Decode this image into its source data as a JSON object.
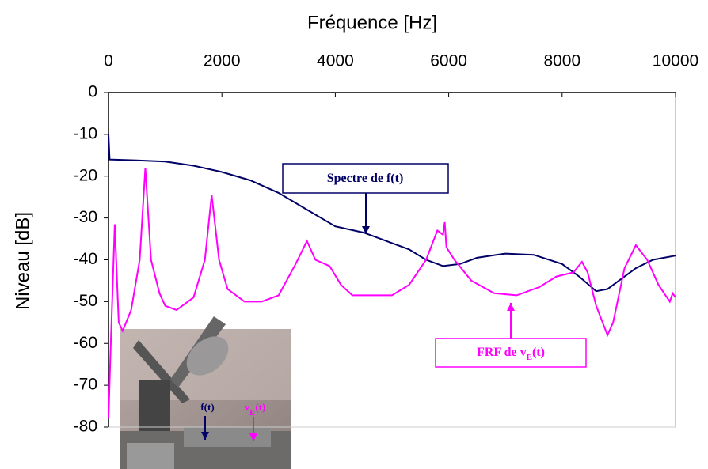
{
  "chart_data": {
    "type": "line",
    "title": "Fréquence [Hz]",
    "y_label": "Niveau [dB]",
    "xlim": [
      0,
      10000
    ],
    "xticks": [
      0,
      2000,
      4000,
      6000,
      8000,
      10000
    ],
    "ylim": [
      -80,
      0
    ],
    "yticks": [
      0,
      -10,
      -20,
      -30,
      -40,
      -50,
      -60,
      -70,
      -80
    ],
    "series": [
      {
        "color": "#000066",
        "x": [
          0,
          20,
          500,
          1000,
          1500,
          2000,
          2500,
          3000,
          3500,
          4000,
          4500,
          4800,
          5000,
          5300,
          5600,
          5900,
          6200,
          6500,
          7000,
          7500,
          8000,
          8300,
          8600,
          8800,
          9000,
          9300,
          9600,
          10000
        ],
        "values": [
          -10,
          -16,
          -16.2,
          -16.5,
          -17.5,
          -19,
          -21,
          -24,
          -28,
          -32,
          -33.5,
          -35,
          -36,
          -37.5,
          -40,
          -41.5,
          -41,
          -39.5,
          -38.5,
          -38.8,
          -41,
          -44,
          -47.5,
          -47,
          -45,
          -42,
          -40,
          -39
        ]
      },
      {
        "color": "#ff00ff",
        "x": [
          0,
          40,
          110,
          180,
          250,
          400,
          550,
          650,
          750,
          900,
          1000,
          1200,
          1500,
          1700,
          1820,
          1950,
          2100,
          2400,
          2700,
          3000,
          3300,
          3500,
          3650,
          3900,
          4100,
          4300,
          4600,
          5000,
          5300,
          5600,
          5800,
          5900,
          5930,
          5960,
          6100,
          6400,
          6800,
          7200,
          7600,
          7900,
          8200,
          8350,
          8450,
          8600,
          8800,
          8900,
          9100,
          9300,
          9500,
          9700,
          9900,
          9950,
          10000
        ],
        "values": [
          -78,
          -60,
          -31.5,
          -55,
          -57,
          -52,
          -40,
          -18,
          -40,
          -48,
          -51,
          -52,
          -49,
          -40,
          -24.5,
          -40,
          -47,
          -50,
          -50,
          -48.5,
          -41,
          -35.5,
          -40,
          -41.5,
          -46,
          -48.5,
          -48.5,
          -48.5,
          -46,
          -40,
          -33,
          -34,
          -31,
          -37,
          -40,
          -45,
          -48,
          -48.5,
          -46.5,
          -44,
          -43,
          -40.5,
          -43,
          -51,
          -58,
          -55,
          -42,
          -36.5,
          -40,
          -46,
          -50,
          -48,
          -49
        ]
      }
    ],
    "annotations": [
      {
        "text": [
          "Spectre de f(t)"
        ]
      },
      {
        "text": [
          "FRF de v",
          "E",
          "(t)"
        ]
      }
    ],
    "inset_labels": [
      {
        "text": [
          "f(t)"
        ]
      },
      {
        "text": [
          "v",
          "E",
          "(t)"
        ]
      }
    ]
  }
}
